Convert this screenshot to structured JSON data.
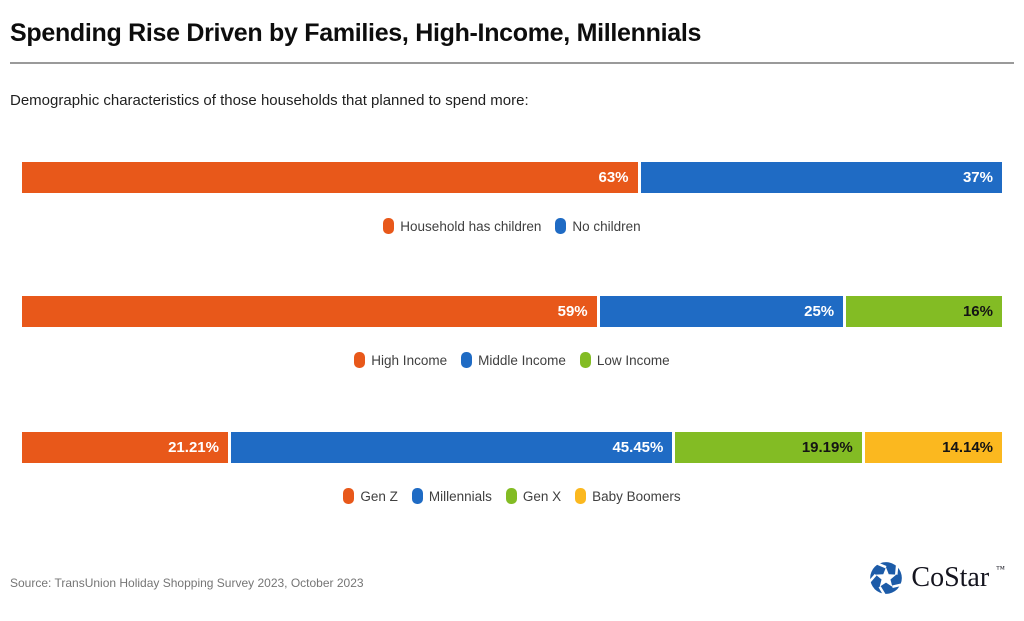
{
  "header": {
    "title": "Spending Rise Driven by Families, High-Income, Millennials",
    "subtitle": "Demographic characteristics of those households that planned to spend more:"
  },
  "footer": {
    "source": "Source: TransUnion Holiday Shopping Survey 2023, October 2023",
    "logo_text": "CoStar",
    "logo_tm": "™",
    "logo_icon": "costar-pinwheel-icon",
    "logo_icon_color": "#1c5ba8"
  },
  "colors": {
    "orange": "#e8581a",
    "blue": "#1f6bc4",
    "green": "#83bc24",
    "yellow": "#fbb81f",
    "bar_gap": "#ffffff"
  },
  "chart_data": [
    {
      "type": "bar",
      "orientation": "horizontal-stacked",
      "legend_position": "bottom-center",
      "segments": [
        {
          "label": "Household has children",
          "value": 63,
          "display": "63%",
          "color": "#e8581a",
          "label_color": "#ffffff"
        },
        {
          "label": "No children",
          "value": 37,
          "display": "37%",
          "color": "#1f6bc4",
          "label_color": "#ffffff"
        }
      ]
    },
    {
      "type": "bar",
      "orientation": "horizontal-stacked",
      "legend_position": "bottom-center",
      "segments": [
        {
          "label": "High Income",
          "value": 59,
          "display": "59%",
          "color": "#e8581a",
          "label_color": "#ffffff"
        },
        {
          "label": "Middle Income",
          "value": 25,
          "display": "25%",
          "color": "#1f6bc4",
          "label_color": "#ffffff"
        },
        {
          "label": "Low Income",
          "value": 16,
          "display": "16%",
          "color": "#83bc24",
          "label_color": "#141414"
        }
      ]
    },
    {
      "type": "bar",
      "orientation": "horizontal-stacked",
      "legend_position": "bottom-center",
      "segments": [
        {
          "label": "Gen Z",
          "value": 21.21,
          "display": "21.21%",
          "color": "#e8581a",
          "label_color": "#ffffff"
        },
        {
          "label": "Millennials",
          "value": 45.45,
          "display": "45.45%",
          "color": "#1f6bc4",
          "label_color": "#ffffff"
        },
        {
          "label": "Gen X",
          "value": 19.19,
          "display": "19.19%",
          "color": "#83bc24",
          "label_color": "#141414"
        },
        {
          "label": "Baby Boomers",
          "value": 14.14,
          "display": "14.14%",
          "color": "#fbb81f",
          "label_color": "#141414"
        }
      ]
    }
  ]
}
